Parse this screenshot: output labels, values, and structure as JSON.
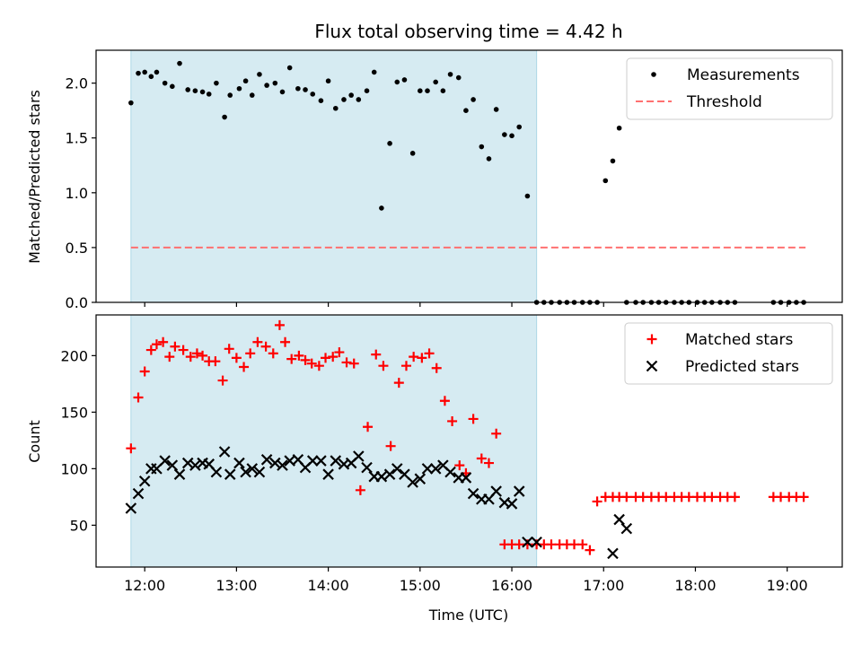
{
  "chart_data": {
    "title": "Flux total observing time = 4.42 h",
    "x_axis": {
      "label": "Time (UTC)",
      "range_hours": [
        11.47,
        19.6
      ],
      "ticks": [
        {
          "value": 12,
          "label": "12:00"
        },
        {
          "value": 13,
          "label": "13:00"
        },
        {
          "value": 14,
          "label": "14:00"
        },
        {
          "value": 15,
          "label": "15:00"
        },
        {
          "value": 16,
          "label": "16:00"
        },
        {
          "value": 17,
          "label": "17:00"
        },
        {
          "value": 18,
          "label": "18:00"
        },
        {
          "value": 19,
          "label": "19:00"
        }
      ]
    },
    "shaded_interval_hours": [
      11.85,
      16.27
    ],
    "shade_color": "#add8e6",
    "panels": [
      {
        "id": "ratio",
        "type": "scatter",
        "ylabel": "Matched/Predicted stars",
        "ylim": [
          0,
          2.3
        ],
        "yticks": [
          {
            "value": 0,
            "label": "0.0"
          },
          {
            "value": 0.5,
            "label": "0.5"
          },
          {
            "value": 1,
            "label": "1.0"
          },
          {
            "value": 1.5,
            "label": "1.5"
          },
          {
            "value": 2,
            "label": "2.0"
          }
        ],
        "legend": [
          {
            "label": "Measurements",
            "marker": "dot",
            "color": "#000000"
          },
          {
            "label": "Threshold",
            "marker": "dashed-line",
            "color": "#ff7070"
          }
        ],
        "threshold": {
          "value": 0.5,
          "x_range": [
            11.85,
            19.2
          ],
          "color": "#ff7070"
        },
        "series": [
          {
            "name": "Measurements",
            "color": "#000000",
            "x": [
              11.85,
              11.93,
              12.0,
              12.07,
              12.13,
              12.22,
              12.3,
              12.38,
              12.47,
              12.55,
              12.63,
              12.7,
              12.78,
              12.87,
              12.93,
              13.03,
              13.1,
              13.17,
              13.25,
              13.33,
              13.42,
              13.5,
              13.58,
              13.67,
              13.75,
              13.83,
              13.92,
              14.0,
              14.08,
              14.17,
              14.25,
              14.33,
              14.42,
              14.5,
              14.58,
              14.67,
              14.75,
              14.83,
              14.92,
              15.0,
              15.08,
              15.17,
              15.25,
              15.33,
              15.42,
              15.5,
              15.58,
              15.67,
              15.75,
              15.83,
              15.92,
              16.0,
              16.08,
              16.17,
              16.27,
              16.35,
              16.43,
              16.52,
              16.6,
              16.68,
              16.77,
              16.85,
              16.93,
              17.02,
              17.1,
              17.17,
              17.25,
              17.35,
              17.43,
              17.52,
              17.6,
              17.68,
              17.77,
              17.85,
              17.93,
              18.02,
              18.1,
              18.18,
              18.27,
              18.35,
              18.43,
              18.85,
              18.93,
              19.02,
              19.1,
              19.18
            ],
            "y": [
              1.82,
              2.09,
              2.1,
              2.06,
              2.1,
              2.0,
              1.97,
              2.18,
              1.94,
              1.93,
              1.92,
              1.9,
              2.0,
              1.69,
              1.89,
              1.95,
              2.02,
              1.89,
              2.08,
              1.98,
              2.0,
              1.92,
              2.14,
              1.95,
              1.94,
              1.9,
              1.84,
              2.02,
              1.77,
              1.85,
              1.89,
              1.85,
              1.93,
              2.1,
              0.86,
              1.45,
              2.01,
              2.03,
              1.36,
              1.93,
              1.93,
              2.01,
              1.93,
              2.08,
              2.05,
              1.75,
              1.85,
              1.42,
              1.31,
              1.76,
              1.53,
              1.52,
              1.6,
              0.97,
              0,
              0,
              0,
              0,
              0,
              0,
              0,
              0,
              0,
              1.11,
              1.29,
              1.59,
              0,
              0,
              0,
              0,
              0,
              0,
              0,
              0,
              0,
              0,
              0,
              0,
              0,
              0,
              0,
              0,
              0,
              0,
              0,
              0
            ]
          }
        ]
      },
      {
        "id": "count",
        "type": "scatter",
        "ylabel": "Count",
        "ylim": [
          13,
          236
        ],
        "yticks": [
          {
            "value": 50,
            "label": "50"
          },
          {
            "value": 100,
            "label": "100"
          },
          {
            "value": 150,
            "label": "150"
          },
          {
            "value": 200,
            "label": "200"
          }
        ],
        "legend": [
          {
            "label": "Matched stars",
            "marker": "plus",
            "color": "#ff0000"
          },
          {
            "label": "Predicted stars",
            "marker": "x",
            "color": "#000000"
          }
        ],
        "series": [
          {
            "name": "Matched stars",
            "marker": "plus",
            "color": "#ff0000",
            "x": [
              11.85,
              11.93,
              12.0,
              12.07,
              12.13,
              12.2,
              12.27,
              12.33,
              12.42,
              12.5,
              12.57,
              12.63,
              12.7,
              12.77,
              12.85,
              12.92,
              13.0,
              13.08,
              13.15,
              13.23,
              13.32,
              13.4,
              13.47,
              13.53,
              13.6,
              13.68,
              13.75,
              13.82,
              13.9,
              13.97,
              14.05,
              14.12,
              14.2,
              14.28,
              14.35,
              14.43,
              14.52,
              14.6,
              14.68,
              14.77,
              14.85,
              14.93,
              15.02,
              15.1,
              15.18,
              15.27,
              15.35,
              15.43,
              15.5,
              15.58,
              15.67,
              15.75,
              15.83,
              15.92,
              16.0,
              16.08,
              16.17,
              16.27,
              16.35,
              16.43,
              16.52,
              16.6,
              16.68,
              16.77,
              16.85,
              16.93,
              17.02,
              17.1,
              17.17,
              17.25,
              17.35,
              17.43,
              17.52,
              17.6,
              17.68,
              17.77,
              17.85,
              17.93,
              18.02,
              18.1,
              18.18,
              18.27,
              18.35,
              18.43,
              18.85,
              18.93,
              19.02,
              19.1,
              19.18
            ],
            "y": [
              118,
              163,
              186,
              205,
              210,
              212,
              199,
              208,
              205,
              199,
              202,
              200,
              195,
              195,
              178,
              206,
              198,
              190,
              202,
              212,
              208,
              202,
              227,
              212,
              197,
              200,
              196,
              193,
              191,
              198,
              199,
              203,
              194,
              193,
              81,
              137,
              201,
              191,
              120,
              176,
              191,
              199,
              198,
              202,
              189,
              160,
              142,
              103,
              96,
              144,
              109,
              105,
              131,
              33,
              33,
              33,
              33,
              33,
              33,
              33,
              33,
              33,
              33,
              33,
              28,
              71,
              75,
              75,
              75,
              75,
              75,
              75,
              75,
              75,
              75,
              75,
              75,
              75,
              75,
              75,
              75,
              75,
              75,
              75,
              75,
              75,
              75,
              75,
              75
            ]
          },
          {
            "name": "Predicted stars",
            "marker": "x",
            "color": "#000000",
            "x": [
              11.85,
              11.93,
              12.0,
              12.07,
              12.13,
              12.22,
              12.3,
              12.38,
              12.47,
              12.55,
              12.63,
              12.7,
              12.78,
              12.87,
              12.93,
              13.03,
              13.1,
              13.17,
              13.25,
              13.33,
              13.42,
              13.5,
              13.58,
              13.67,
              13.75,
              13.83,
              13.92,
              14.0,
              14.08,
              14.17,
              14.25,
              14.33,
              14.42,
              14.5,
              14.58,
              14.67,
              14.75,
              14.83,
              14.92,
              15.0,
              15.08,
              15.17,
              15.25,
              15.33,
              15.42,
              15.5,
              15.58,
              15.67,
              15.75,
              15.83,
              15.92,
              16.0,
              16.08,
              16.17,
              16.27,
              17.1,
              17.17,
              17.25
            ],
            "y": [
              65,
              78,
              89,
              100,
              100,
              107,
              103,
              95,
              105,
              103,
              105,
              104,
              97,
              115,
              95,
              105,
              97,
              100,
              97,
              108,
              105,
              103,
              107,
              108,
              101,
              107,
              107,
              95,
              107,
              104,
              105,
              111,
              101,
              93,
              93,
              95,
              100,
              95,
              88,
              91,
              100,
              100,
              103,
              97,
              92,
              92,
              78,
              73,
              73,
              80,
              70,
              69,
              80,
              35,
              35,
              25,
              55,
              47
            ]
          }
        ]
      }
    ]
  }
}
